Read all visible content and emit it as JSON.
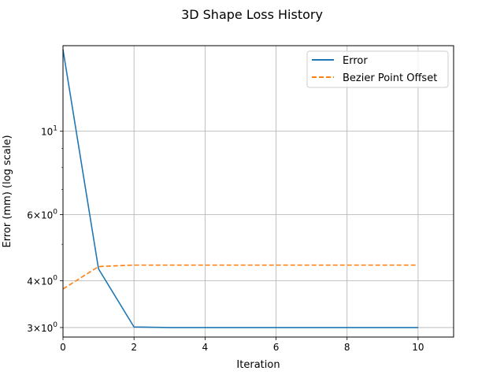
{
  "chart_data": {
    "type": "line",
    "title": "3D Shape Loss History",
    "xlabel": "Iteration",
    "ylabel": "Error (mm) (log scale)",
    "yscale": "log",
    "xlim": [
      0,
      11
    ],
    "ylim": [
      2.83,
      16.9
    ],
    "grid": "x-major and y-major",
    "legend_position": "top-right",
    "x_ticks": [
      {
        "value": 0,
        "label": "0"
      },
      {
        "value": 2,
        "label": "2"
      },
      {
        "value": 4,
        "label": "4"
      },
      {
        "value": 6,
        "label": "6"
      },
      {
        "value": 8,
        "label": "8"
      },
      {
        "value": 10,
        "label": "10"
      }
    ],
    "y_ticks": [
      {
        "value": 3,
        "base": "3×10",
        "exp": "0"
      },
      {
        "value": 4,
        "base": "4×10",
        "exp": "0"
      },
      {
        "value": 6,
        "base": "6×10",
        "exp": "0"
      },
      {
        "value": 10,
        "base": "10",
        "exp": "1"
      }
    ],
    "y_minor_ticks": [
      5,
      7,
      8,
      9
    ],
    "x": [
      0,
      1,
      2,
      3,
      4,
      5,
      6,
      7,
      8,
      9,
      10
    ],
    "series": [
      {
        "name": "Error",
        "color": "#1f77b4",
        "style": "solid",
        "values": [
          16.5,
          4.3,
          3.01,
          3.0,
          3.0,
          3.0,
          3.0,
          3.0,
          3.0,
          3.0,
          3.0
        ]
      },
      {
        "name": "Bezier Point Offset",
        "color": "#ff7f0e",
        "style": "dashed",
        "values": [
          3.8,
          4.36,
          4.4,
          4.4,
          4.4,
          4.4,
          4.4,
          4.4,
          4.4,
          4.4,
          4.4
        ]
      }
    ]
  }
}
